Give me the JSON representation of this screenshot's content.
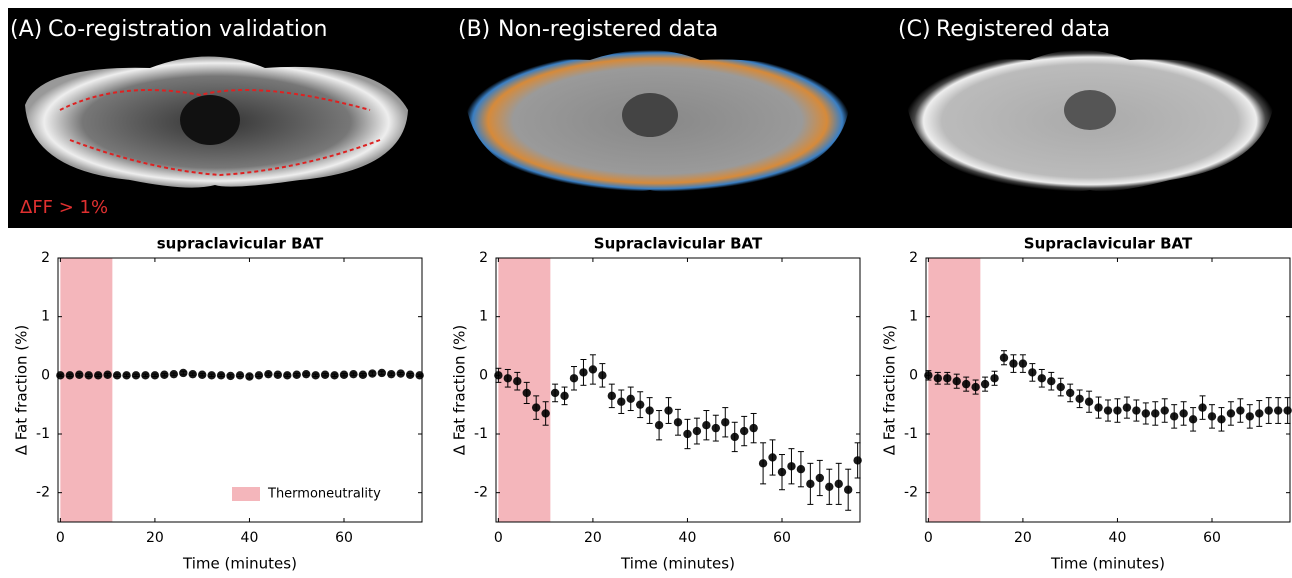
{
  "images": [
    {
      "label": "(A)",
      "caption": "Co-registration validation",
      "note": "ΔFF > 1%"
    },
    {
      "label": "(B)",
      "caption": "Non-registered data"
    },
    {
      "label": "(C)",
      "caption": "Registered data"
    }
  ],
  "chart_data": [
    {
      "type": "errorbar",
      "title": "supraclavicular BAT",
      "xlabel": "Time (minutes)",
      "ylabel": "Δ Fat fraction (%)",
      "color": "#000000",
      "x": [
        0,
        2,
        4,
        6,
        8,
        10,
        12,
        14,
        16,
        18,
        20,
        22,
        24,
        26,
        28,
        30,
        32,
        34,
        36,
        38,
        40,
        42,
        44,
        46,
        48,
        50,
        52,
        54,
        56,
        58,
        60,
        62,
        64,
        66,
        68,
        70,
        72,
        74,
        76
      ],
      "values": [
        0,
        0,
        0.01,
        0,
        0,
        0.01,
        0,
        0,
        0,
        0,
        0,
        0.01,
        0.02,
        0.04,
        0.02,
        0.01,
        0,
        0,
        -0.01,
        0,
        -0.02,
        0,
        0.02,
        0.01,
        0,
        0.01,
        0.02,
        0,
        0.01,
        0,
        0.01,
        0.02,
        0.01,
        0.03,
        0.04,
        0.02,
        0.03,
        0.01,
        0
      ],
      "errors": [
        0.02,
        0.02,
        0.02,
        0.02,
        0.02,
        0.02,
        0.02,
        0.02,
        0.02,
        0.02,
        0.02,
        0.02,
        0.02,
        0.03,
        0.02,
        0.02,
        0.02,
        0.02,
        0.02,
        0.02,
        0.03,
        0.02,
        0.02,
        0.02,
        0.02,
        0.02,
        0.02,
        0.02,
        0.02,
        0.02,
        0.02,
        0.02,
        0.02,
        0.03,
        0.03,
        0.02,
        0.02,
        0.02,
        0.02
      ],
      "shade": {
        "range": [
          0,
          11
        ],
        "color": "#f4b6bb",
        "name": "Thermoneutrality"
      },
      "legend": "lower right",
      "xlim": [
        -0.5,
        76.5
      ],
      "ylim": [
        -2.5,
        2
      ],
      "xticks": [
        0,
        20,
        40,
        60
      ],
      "yticks": [
        -2,
        -1,
        0,
        1,
        2
      ]
    },
    {
      "type": "errorbar",
      "title": "Supraclavicular BAT",
      "xlabel": "Time (minutes)",
      "ylabel": "Δ Fat fraction (%)",
      "color": "#000000",
      "x": [
        0,
        2,
        4,
        6,
        8,
        10,
        12,
        14,
        16,
        18,
        20,
        22,
        24,
        26,
        28,
        30,
        32,
        34,
        36,
        38,
        40,
        42,
        44,
        46,
        48,
        50,
        52,
        54,
        56,
        58,
        60,
        62,
        64,
        66,
        68,
        70,
        72,
        74,
        76
      ],
      "values": [
        0,
        -0.05,
        -0.1,
        -0.3,
        -0.55,
        -0.65,
        -0.3,
        -0.35,
        -0.05,
        0.05,
        0.1,
        0,
        -0.35,
        -0.45,
        -0.4,
        -0.5,
        -0.6,
        -0.85,
        -0.6,
        -0.8,
        -1.0,
        -0.95,
        -0.85,
        -0.9,
        -0.8,
        -1.05,
        -0.95,
        -0.9,
        -1.5,
        -1.4,
        -1.65,
        -1.55,
        -1.6,
        -1.85,
        -1.75,
        -1.9,
        -1.85,
        -1.95,
        -1.45
      ],
      "errors": [
        0.12,
        0.15,
        0.15,
        0.18,
        0.2,
        0.2,
        0.15,
        0.15,
        0.2,
        0.22,
        0.25,
        0.2,
        0.2,
        0.2,
        0.2,
        0.22,
        0.22,
        0.25,
        0.22,
        0.22,
        0.25,
        0.22,
        0.25,
        0.22,
        0.25,
        0.25,
        0.25,
        0.25,
        0.35,
        0.3,
        0.3,
        0.3,
        0.3,
        0.35,
        0.3,
        0.3,
        0.35,
        0.35,
        0.3
      ],
      "shade": {
        "range": [
          0,
          11
        ],
        "color": "#f4b6bb"
      },
      "xlim": [
        -0.5,
        76.5
      ],
      "ylim": [
        -2.5,
        2
      ],
      "xticks": [
        0,
        20,
        40,
        60
      ],
      "yticks": [
        -2,
        -1,
        0,
        1,
        2
      ]
    },
    {
      "type": "errorbar",
      "title": "Supraclavicular BAT",
      "xlabel": "Time (minutes)",
      "ylabel": "Δ Fat fraction (%)",
      "color": "#000000",
      "x": [
        0,
        2,
        4,
        6,
        8,
        10,
        12,
        14,
        16,
        18,
        20,
        22,
        24,
        26,
        28,
        30,
        32,
        34,
        36,
        38,
        40,
        42,
        44,
        46,
        48,
        50,
        52,
        54,
        56,
        58,
        60,
        62,
        64,
        66,
        68,
        70,
        72,
        74,
        76
      ],
      "values": [
        0,
        -0.05,
        -0.05,
        -0.1,
        -0.15,
        -0.2,
        -0.15,
        -0.05,
        0.3,
        0.2,
        0.2,
        0.05,
        -0.05,
        -0.1,
        -0.2,
        -0.3,
        -0.4,
        -0.45,
        -0.55,
        -0.6,
        -0.6,
        -0.55,
        -0.6,
        -0.65,
        -0.65,
        -0.6,
        -0.7,
        -0.65,
        -0.75,
        -0.55,
        -0.7,
        -0.75,
        -0.65,
        -0.6,
        -0.7,
        -0.65,
        -0.6,
        -0.6,
        -0.6
      ],
      "errors": [
        0.08,
        0.1,
        0.1,
        0.12,
        0.12,
        0.12,
        0.12,
        0.12,
        0.12,
        0.15,
        0.15,
        0.15,
        0.15,
        0.15,
        0.15,
        0.15,
        0.15,
        0.18,
        0.18,
        0.18,
        0.2,
        0.18,
        0.18,
        0.18,
        0.2,
        0.2,
        0.2,
        0.2,
        0.2,
        0.2,
        0.2,
        0.2,
        0.2,
        0.2,
        0.2,
        0.22,
        0.22,
        0.22,
        0.22
      ],
      "shade": {
        "range": [
          0,
          11
        ],
        "color": "#f4b6bb"
      },
      "xlim": [
        -0.5,
        76.5
      ],
      "ylim": [
        -2.5,
        2
      ],
      "xticks": [
        0,
        20,
        40,
        60
      ],
      "yticks": [
        -2,
        -1,
        0,
        1,
        2
      ]
    }
  ]
}
